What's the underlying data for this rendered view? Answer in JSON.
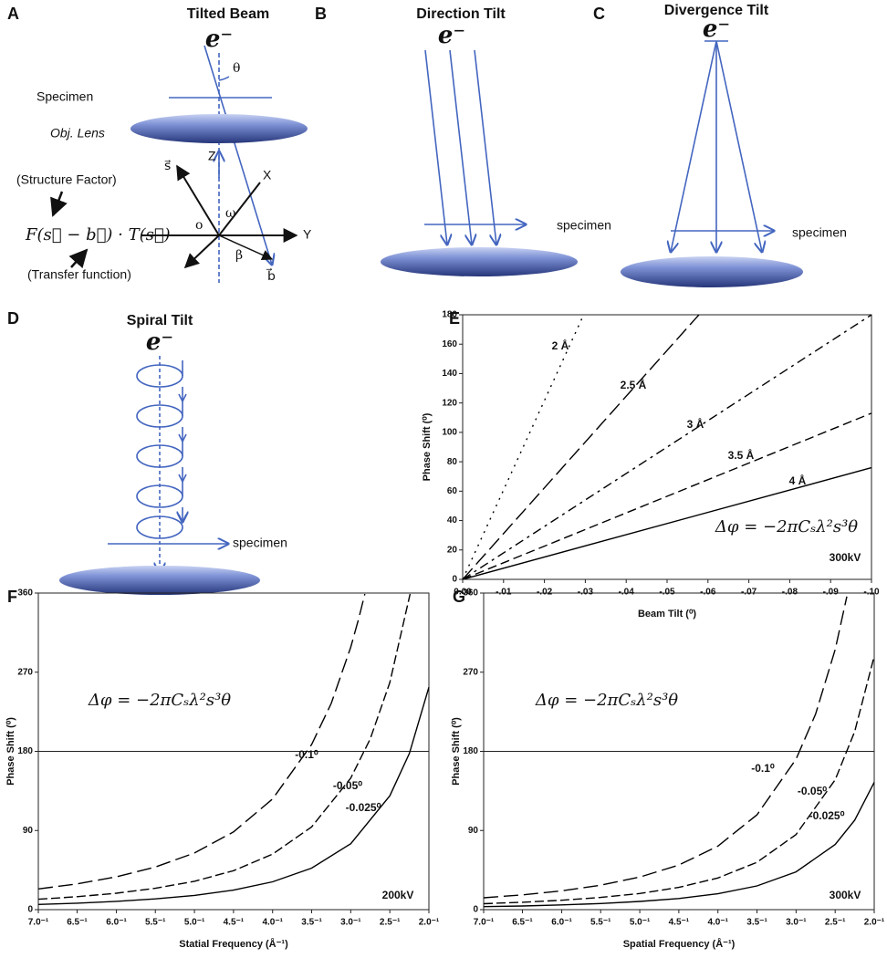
{
  "diagrams": {
    "A": {
      "label": "A",
      "title": "Tilted Beam",
      "electron": "e⁻",
      "theta": "θ",
      "specimen": "Specimen",
      "lens": "Obj. Lens",
      "z": "Z",
      "s": "s⃗",
      "x": "X",
      "omega": "ω",
      "origin": "o",
      "y": "Y",
      "beta": "β",
      "b": "b⃗",
      "structure_factor": "(Structure Factor)",
      "equation": "F(s⃗ − b⃗) · T(s⃗)",
      "transfer_function": "(Transfer function)"
    },
    "B": {
      "label": "B",
      "title": "Direction Tilt",
      "electron": "e⁻",
      "specimen": "specimen"
    },
    "C": {
      "label": "C",
      "title": "Divergence Tilt",
      "electron": "e⁻",
      "specimen": "specimen"
    },
    "D": {
      "label": "D",
      "title": "Spiral Tilt",
      "electron": "e⁻",
      "specimen": "specimen"
    }
  },
  "chart_data": [
    {
      "type": "line",
      "panel_label": "E",
      "xlabel": "Beam Tilt (⁰)",
      "ylabel": "Phase Shift (⁰)",
      "xlim": [
        0,
        -0.1
      ],
      "xticks": [
        {
          "value": 0,
          "label": "0.00"
        },
        {
          "value": -0.01,
          "label": "-.01"
        },
        {
          "value": -0.02,
          "label": "-.02"
        },
        {
          "value": -0.03,
          "label": "-.03"
        },
        {
          "value": -0.04,
          "label": "-.04"
        },
        {
          "value": -0.05,
          "label": "-.05"
        },
        {
          "value": -0.06,
          "label": "-.06"
        },
        {
          "value": -0.07,
          "label": "-.07"
        },
        {
          "value": -0.08,
          "label": "-.08"
        },
        {
          "value": -0.09,
          "label": "-.09"
        },
        {
          "value": -0.1,
          "label": "-.10"
        }
      ],
      "ylim": [
        0,
        180
      ],
      "yticks": [
        0,
        20,
        40,
        60,
        80,
        100,
        120,
        140,
        160,
        180
      ],
      "annotations": [
        "Δφ = −2πCₛλ²s³θ",
        "300kV"
      ],
      "series": [
        {
          "name": "2 Å",
          "color": "#000000",
          "x": [
            0,
            -0.0296
          ],
          "values": [
            0,
            180
          ]
        },
        {
          "name": "2.5 Å",
          "color": "#000000",
          "x": [
            0,
            -0.0578
          ],
          "values": [
            0,
            180
          ]
        },
        {
          "name": "3 Å",
          "color": "#000000",
          "x": [
            0,
            -0.1
          ],
          "values": [
            0,
            180
          ]
        },
        {
          "name": "3.5 Å",
          "color": "#000000",
          "x": [
            0,
            -0.1
          ],
          "values": [
            0,
            113
          ]
        },
        {
          "name": "4 Å",
          "color": "#000000",
          "x": [
            0,
            -0.1
          ],
          "values": [
            0,
            76
          ]
        }
      ]
    },
    {
      "type": "line",
      "panel_label": "F",
      "xlabel": "Statial Frequency (Å⁻¹)",
      "ylabel": "Phase Shift (⁰)",
      "xscale": "reciprocal",
      "xlim": [
        0.1429,
        0.5
      ],
      "xticks": [
        {
          "value": 0.1429,
          "label": "7.0⁻¹"
        },
        {
          "value": 0.1538,
          "label": "6.5⁻¹"
        },
        {
          "value": 0.1667,
          "label": "6.0⁻¹"
        },
        {
          "value": 0.1818,
          "label": "5.5⁻¹"
        },
        {
          "value": 0.2,
          "label": "5.0⁻¹"
        },
        {
          "value": 0.2222,
          "label": "4.5⁻¹"
        },
        {
          "value": 0.25,
          "label": "4.0⁻¹"
        },
        {
          "value": 0.2857,
          "label": "3.5⁻¹"
        },
        {
          "value": 0.3333,
          "label": "3.0⁻¹"
        },
        {
          "value": 0.4,
          "label": "2.5⁻¹"
        },
        {
          "value": 0.5,
          "label": "2.0⁻¹"
        }
      ],
      "ylim": [
        0,
        360
      ],
      "yticks": [
        0,
        90,
        180,
        270,
        360
      ],
      "reference_line": 180,
      "annotations": [
        "Δφ = −2πCₛλ²s³θ",
        "200kV"
      ],
      "series": [
        {
          "name": "-0.1⁰",
          "color": "#000000",
          "x": [
            0.1429,
            0.1538,
            0.1667,
            0.1818,
            0.2,
            0.2222,
            0.25,
            0.2857,
            0.3077,
            0.3333,
            0.3448,
            0.3546
          ],
          "values": [
            23.5,
            29.3,
            37.3,
            48.4,
            64.4,
            88.4,
            125.8,
            187.8,
            234.6,
            298.3,
            330.2,
            359
          ]
        },
        {
          "name": "-0.05⁰",
          "color": "#000000",
          "x": [
            0.1429,
            0.1538,
            0.1667,
            0.1818,
            0.2,
            0.2222,
            0.25,
            0.2857,
            0.3333,
            0.3636,
            0.4,
            0.4464
          ],
          "values": [
            11.8,
            14.7,
            18.7,
            24.3,
            32.3,
            44.3,
            63.1,
            94.1,
            149.5,
            194.1,
            258.3,
            359
          ]
        },
        {
          "name": "-0.025⁰",
          "color": "#000000",
          "x": [
            0.1429,
            0.1538,
            0.1667,
            0.1818,
            0.2,
            0.2222,
            0.25,
            0.2857,
            0.3333,
            0.4,
            0.4444,
            0.5
          ],
          "values": [
            5.9,
            7.4,
            9.4,
            12.2,
            16.2,
            22.2,
            31.6,
            47.2,
            74.9,
            129.5,
            177.6,
            252.9
          ]
        }
      ]
    },
    {
      "type": "line",
      "panel_label": "G",
      "xlabel": "Spatial Frequency (Å⁻¹)",
      "ylabel": "Phase Shift (⁰)",
      "xscale": "reciprocal",
      "xlim": [
        0.1429,
        0.5
      ],
      "xticks": [
        {
          "value": 0.1429,
          "label": "7.0⁻¹"
        },
        {
          "value": 0.1538,
          "label": "6.5⁻¹"
        },
        {
          "value": 0.1667,
          "label": "6.0⁻¹"
        },
        {
          "value": 0.1818,
          "label": "5.5⁻¹"
        },
        {
          "value": 0.2,
          "label": "5.0⁻¹"
        },
        {
          "value": 0.2222,
          "label": "4.5⁻¹"
        },
        {
          "value": 0.25,
          "label": "4.0⁻¹"
        },
        {
          "value": 0.2857,
          "label": "3.5⁻¹"
        },
        {
          "value": 0.3333,
          "label": "3.0⁻¹"
        },
        {
          "value": 0.4,
          "label": "2.5⁻¹"
        },
        {
          "value": 0.5,
          "label": "2.0⁻¹"
        }
      ],
      "ylim": [
        0,
        360
      ],
      "yticks": [
        0,
        90,
        180,
        270,
        360
      ],
      "reference_line": 180,
      "annotations": [
        "Δφ = −2πCₛλ²s³θ",
        "300kV"
      ],
      "series": [
        {
          "name": "-0.1⁰",
          "color": "#000000",
          "x": [
            0.1429,
            0.1538,
            0.1667,
            0.1818,
            0.2,
            0.2222,
            0.25,
            0.2857,
            0.3333,
            0.3636,
            0.4,
            0.4255
          ],
          "values": [
            13.5,
            16.8,
            21.4,
            27.8,
            37.0,
            50.7,
            72.2,
            107.8,
            171.1,
            222.2,
            295.7,
            356.1
          ]
        },
        {
          "name": "-0.05⁰",
          "color": "#000000",
          "x": [
            0.1429,
            0.1538,
            0.1667,
            0.1818,
            0.2,
            0.2222,
            0.25,
            0.2857,
            0.3333,
            0.4,
            0.4444,
            0.5
          ],
          "values": [
            6.7,
            8.4,
            10.7,
            13.9,
            18.4,
            25.3,
            36.0,
            53.8,
            85.4,
            147.6,
            202.5,
            288.3
          ]
        },
        {
          "name": "-0.025⁰",
          "color": "#000000",
          "x": [
            0.1429,
            0.1538,
            0.1667,
            0.1818,
            0.2,
            0.2222,
            0.25,
            0.2857,
            0.3333,
            0.4,
            0.4444,
            0.5
          ],
          "values": [
            3.4,
            4.2,
            5.4,
            7.0,
            9.3,
            12.7,
            18.1,
            27.0,
            42.9,
            74.1,
            101.7,
            144.8
          ]
        }
      ]
    }
  ]
}
